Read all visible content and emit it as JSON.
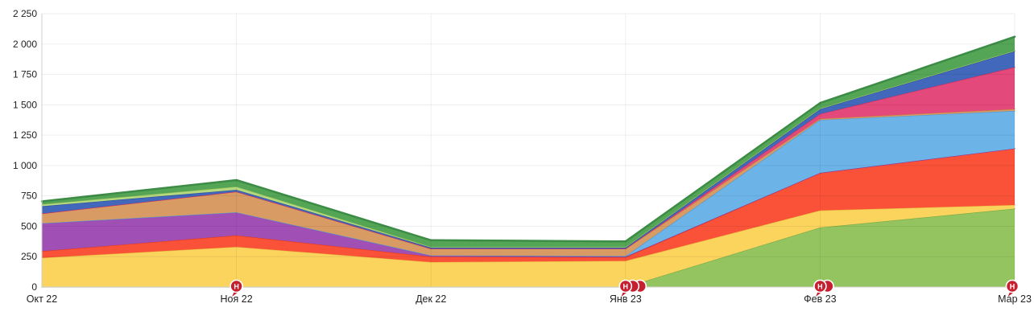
{
  "chart_data": {
    "type": "area",
    "stacked": true,
    "title": "",
    "xlabel": "",
    "ylabel": "",
    "grid": true,
    "legend": false,
    "categories": [
      "Окт 22",
      "Ноя 22",
      "Дек 22",
      "Янв 23",
      "Фев 23",
      "Мар 23"
    ],
    "ylim": [
      0,
      2250
    ],
    "y_tick_step": 250,
    "y_tick_labels": [
      "0",
      "250",
      "500",
      "750",
      "1 000",
      "1 250",
      "1 500",
      "1 750",
      "2 000",
      "2 250"
    ],
    "series": [
      {
        "name": "light-green",
        "fill": "#94c45f",
        "stroke": "#76a944",
        "values": [
          0,
          0,
          0,
          0,
          490,
          645
        ]
      },
      {
        "name": "yellow",
        "fill": "#fbd45e",
        "stroke": "#e9b93f",
        "values": [
          240,
          330,
          205,
          215,
          140,
          30
        ]
      },
      {
        "name": "red-orange",
        "fill": "#f95238",
        "stroke": "#e03a24",
        "values": [
          55,
          95,
          45,
          30,
          310,
          465
        ]
      },
      {
        "name": "purple",
        "fill": "#a04fb5",
        "stroke": "#873a9c",
        "values": [
          230,
          190,
          10,
          5,
          0,
          0
        ]
      },
      {
        "name": "sky-blue",
        "fill": "#6cb3e8",
        "stroke": "#4f97d2",
        "values": [
          0,
          0,
          0,
          5,
          435,
          310
        ]
      },
      {
        "name": "tan",
        "fill": "#d99b64",
        "stroke": "#c17f44",
        "values": [
          80,
          170,
          55,
          60,
          10,
          15
        ]
      },
      {
        "name": "pink",
        "fill": "#e4497b",
        "stroke": "#c72f60",
        "values": [
          0,
          0,
          0,
          0,
          40,
          345
        ]
      },
      {
        "name": "royal-blue",
        "fill": "#4168ba",
        "stroke": "#2f4f9e",
        "values": [
          60,
          15,
          10,
          10,
          40,
          130
        ]
      },
      {
        "name": "pale-green",
        "fill": "#b5d97e",
        "stroke": "#9cc35c",
        "values": [
          15,
          25,
          5,
          5,
          5,
          5
        ]
      },
      {
        "name": "green",
        "fill": "#55a557",
        "stroke": "#3c8c46",
        "values": [
          25,
          55,
          55,
          45,
          45,
          115
        ]
      }
    ],
    "markers": {
      "label": "Н",
      "color": "#c51f30",
      "items": [
        {
          "category_index": 1,
          "count": 1
        },
        {
          "category_index": 3,
          "count": 3
        },
        {
          "category_index": 4,
          "count": 2
        },
        {
          "category_index": 5,
          "count": 1
        }
      ]
    },
    "colors": {
      "grid_line": "rgba(0,0,0,0.065)",
      "axis_line": "#cfcfcf",
      "tick_text": "#1f1f1f",
      "marker_text": "#ffffff"
    }
  }
}
